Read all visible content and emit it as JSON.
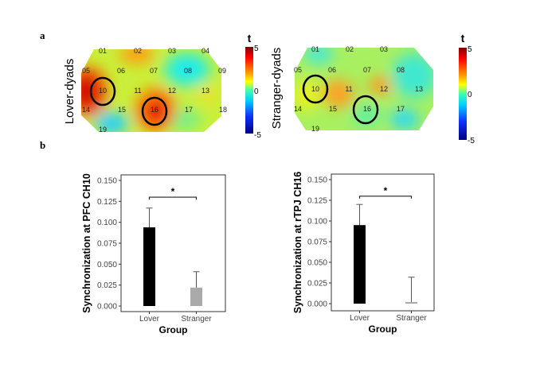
{
  "panel_a_label": "a",
  "panel_b_label": "b",
  "heatmaps": [
    {
      "row_label": "Lover-dyads",
      "channels": [
        "01",
        "02",
        "03",
        "04",
        "05",
        "06",
        "07",
        "08",
        "09",
        "10",
        "11",
        "12",
        "13",
        "14",
        "15",
        "16",
        "17",
        "18",
        "19"
      ],
      "highlighted_channels": [
        "10",
        "16"
      ]
    },
    {
      "row_label": "Stranger-dyads",
      "channels": [
        "01",
        "02",
        "03",
        "05",
        "06",
        "07",
        "08",
        "10",
        "11",
        "12",
        "13",
        "14",
        "15",
        "16",
        "17",
        "19"
      ],
      "highlighted_channels": [
        "10",
        "16"
      ]
    }
  ],
  "colorbar": {
    "title": "t",
    "max_label": "5",
    "mid_label": "0",
    "min_label": "-5",
    "range": [
      -5,
      5
    ],
    "colormap": "jet"
  },
  "chart_data": [
    {
      "type": "bar",
      "categories": [
        "Lover",
        "Stranger"
      ],
      "values": [
        0.094,
        0.022
      ],
      "error_upper": [
        0.117,
        0.041
      ],
      "colors": [
        "#000000",
        "#aaaaaa"
      ],
      "xlabel": "Group",
      "ylabel": "Synchronization at PFC CH10",
      "ylim": [
        0,
        0.15
      ],
      "yticks": [
        "0.000",
        "0.025",
        "0.050",
        "0.075",
        "0.100",
        "0.125",
        "0.150"
      ],
      "significance": "*",
      "grid": false
    },
    {
      "type": "bar",
      "categories": [
        "Lover",
        "Stranger"
      ],
      "values": [
        0.095,
        0.002
      ],
      "error_upper": [
        0.12,
        0.032
      ],
      "colors": [
        "#000000",
        "#aaaaaa"
      ],
      "xlabel": "Group",
      "ylabel": "Synchronization at rTPJ CH16",
      "ylim": [
        0,
        0.15
      ],
      "yticks": [
        "0.000",
        "0.025",
        "0.050",
        "0.075",
        "0.100",
        "0.125",
        "0.150"
      ],
      "significance": "*",
      "grid": false
    }
  ]
}
